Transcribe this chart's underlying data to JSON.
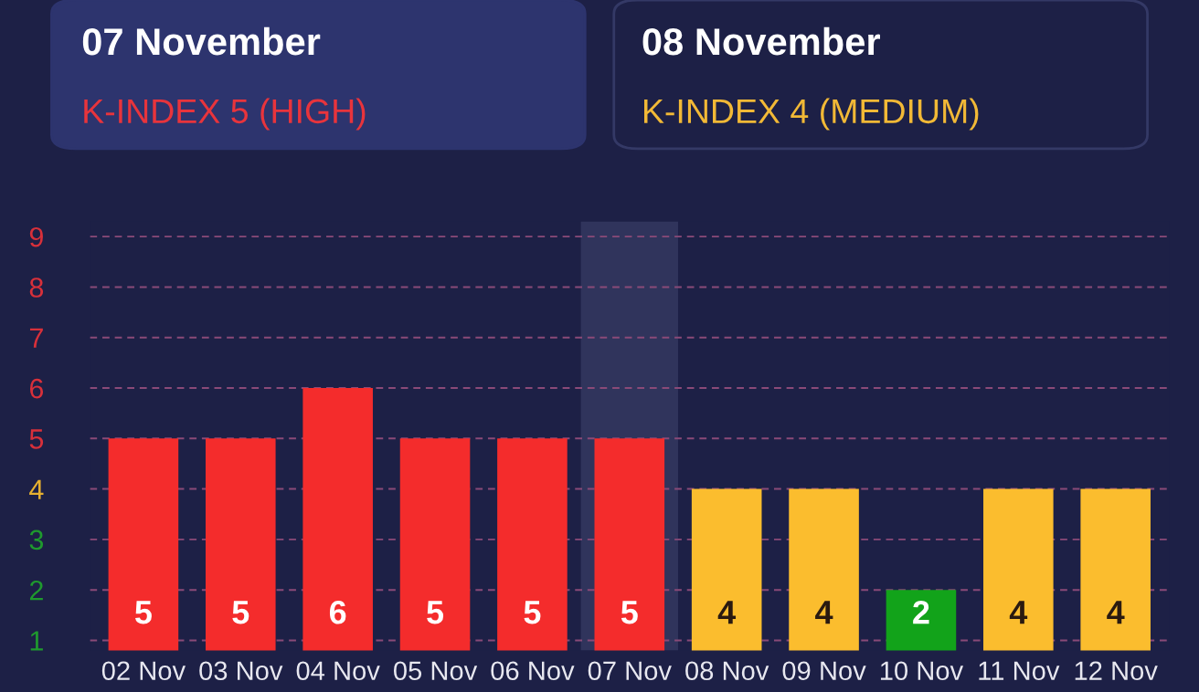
{
  "chart_data": {
    "type": "bar",
    "annotations": [
      "07 November",
      "K-INDEX 5 (HIGH)",
      "08 November",
      "K-INDEX 4 (MEDIUM)"
    ],
    "categories": [
      "02 Nov",
      "03 Nov",
      "04 Nov",
      "05 Nov",
      "06 Nov",
      "07 Nov",
      "08 Nov",
      "09 Nov",
      "10 Nov",
      "11 Nov",
      "12 Nov"
    ],
    "values": [
      5,
      5,
      6,
      5,
      5,
      5,
      4,
      4,
      2,
      4,
      4
    ],
    "colors": [
      "#f42c2c",
      "#f42c2c",
      "#f42c2c",
      "#f42c2c",
      "#f42c2c",
      "#f42c2c",
      "#fbbd2e",
      "#fbbd2e",
      "#12a31a",
      "#fbbd2e",
      "#fbbd2e"
    ],
    "ylim": [
      0.8,
      9.3
    ],
    "yticks": [
      1,
      2,
      3,
      4,
      5,
      6,
      7,
      8,
      9
    ],
    "grid": "y",
    "data_labels": true,
    "bands": [
      {
        "axis": "x",
        "from": "07 Nov",
        "to": "07 Nov",
        "color": "#30345c"
      }
    ]
  }
}
